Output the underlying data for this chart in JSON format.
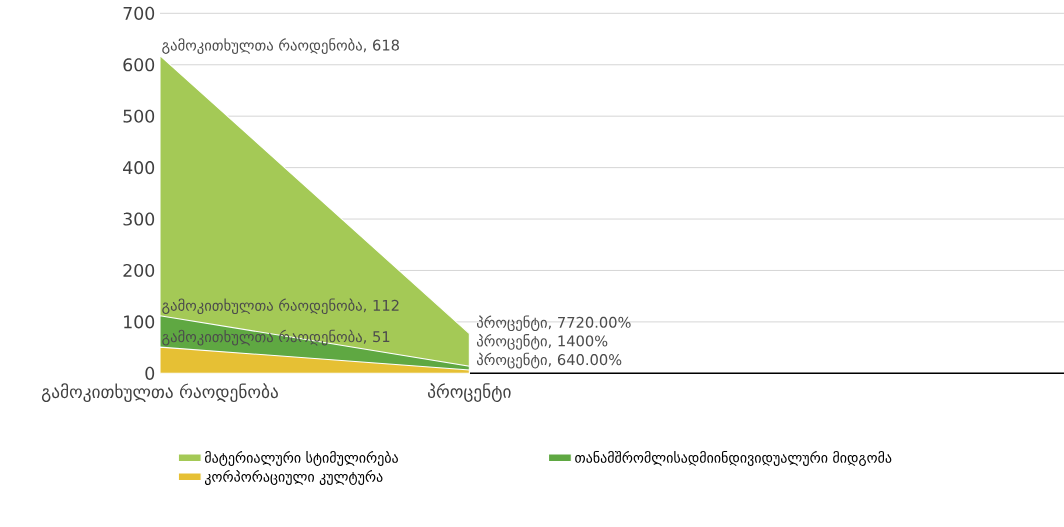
{
  "chart_data": {
    "type": "area",
    "categories": [
      "გამოკითხულთა რაოდენობა",
      "პროცენტი"
    ],
    "series": [
      {
        "name": "მატერიალური სტიმულირება",
        "color": "#a4c956",
        "values": [
          618,
          77.2
        ],
        "value_labels": [
          "გამოკითხულთა რაოდენობა, 618",
          "პროცენტი, 7720.00%"
        ]
      },
      {
        "name": "თანამშრომლისადმიინდივიდუალური მიდგომა",
        "color": "#5fa842",
        "values": [
          112,
          14
        ],
        "value_labels": [
          "გამოკითხულთა რაოდენობა, 112",
          "პროცენტი, 1400%"
        ]
      },
      {
        "name": "კორპორაციული კულტურა",
        "color": "#e6c034",
        "values": [
          51,
          6.4
        ],
        "value_labels": [
          "გამოკითხულთა რაოდენობა, 51",
          "პროცენტი, 640.00%"
        ]
      }
    ],
    "ylim": [
      0,
      700
    ],
    "yticks": [
      0,
      100,
      200,
      300,
      400,
      500,
      600,
      700
    ],
    "grid": "y",
    "legend": "bottom"
  }
}
